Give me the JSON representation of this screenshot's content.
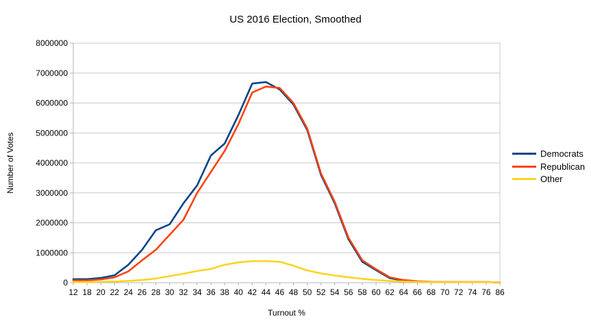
{
  "chart_data": {
    "type": "line",
    "title": "US 2016 Election, Smoothed",
    "xlabel": "Turnout %",
    "ylabel": "Number of Votes",
    "x_labels": [
      "12",
      "18",
      "20",
      "22",
      "24",
      "26",
      "28",
      "30",
      "32",
      "34",
      "36",
      "38",
      "40",
      "42",
      "44",
      "46",
      "48",
      "50",
      "52",
      "54",
      "56",
      "58",
      "60",
      "62",
      "64",
      "66",
      "68",
      "70",
      "72",
      "74",
      "76",
      "86"
    ],
    "ylim": [
      0,
      8000000
    ],
    "ytick_step": 1000000,
    "grid": "horizontal",
    "legend_position": "right",
    "colors": {
      "grid": "#c9c9c9",
      "axis": "#b3b3b3",
      "text": "#000000",
      "background": "#ffffff"
    },
    "series": [
      {
        "name": "Democrats",
        "color": "#004586",
        "values": [
          120000,
          120000,
          160000,
          250000,
          600000,
          1100000,
          1750000,
          1950000,
          2650000,
          3250000,
          4250000,
          4650000,
          5600000,
          6650000,
          6700000,
          6450000,
          5950000,
          5100000,
          3600000,
          2650000,
          1450000,
          700000,
          420000,
          150000,
          70000,
          40000,
          20000,
          20000,
          20000,
          20000,
          20000,
          10000
        ]
      },
      {
        "name": "Republican",
        "color": "#ff420e",
        "values": [
          80000,
          80000,
          110000,
          180000,
          380000,
          750000,
          1100000,
          1600000,
          2100000,
          3000000,
          3700000,
          4400000,
          5300000,
          6350000,
          6550000,
          6500000,
          6000000,
          5150000,
          3650000,
          2700000,
          1500000,
          750000,
          450000,
          180000,
          90000,
          50000,
          30000,
          20000,
          20000,
          20000,
          20000,
          10000
        ]
      },
      {
        "name": "Other",
        "color": "#ffd320",
        "values": [
          20000,
          20000,
          30000,
          40000,
          60000,
          90000,
          140000,
          220000,
          300000,
          390000,
          460000,
          600000,
          680000,
          720000,
          720000,
          700000,
          570000,
          410000,
          310000,
          240000,
          180000,
          130000,
          90000,
          60000,
          40000,
          30000,
          20000,
          20000,
          20000,
          20000,
          20000,
          10000
        ]
      }
    ],
    "legend_y_centers": [
      224,
      243,
      261
    ]
  }
}
